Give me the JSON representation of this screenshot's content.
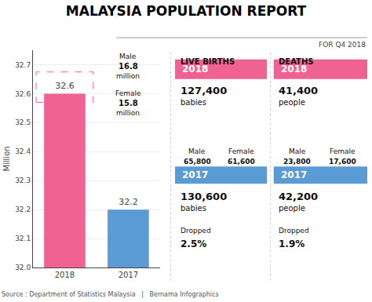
{
  "chart_data": {
    "type": "bar",
    "title": "MALAYSIA POPULATION REPORT",
    "subtitle": "FOR Q4 2018",
    "categories": [
      "2018",
      "2017"
    ],
    "values": [
      32.6,
      32.2
    ],
    "colors": [
      "#f06292",
      "#5b9bd5"
    ],
    "data_labels": true,
    "ylabel": "Million",
    "ylim": [
      32.0,
      32.75
    ],
    "yticks": [
      {
        "value": 32.0,
        "label": "32.0"
      },
      32.1,
      32.2,
      32.3,
      32.4,
      32.5,
      32.6,
      32.7
    ],
    "annotations": [
      "Male",
      "16.8",
      "million",
      "Female",
      "15.8",
      "million",
      "LIVE BIRTHS",
      "2018",
      "127,400",
      "babies",
      "Male",
      "65,800",
      "Female",
      "61,600",
      "2017",
      "130,600",
      "babies",
      "Dropped",
      "2.5%",
      "DEATHS",
      "2018",
      "41,400",
      "people",
      "Male",
      "23,800",
      "Female",
      "17,600",
      "2017",
      "42,200",
      "people",
      "Dropped",
      "1.9%",
      "Source : Department of Statistics Malaysia   |   Bernama Infographics"
    ]
  }
}
